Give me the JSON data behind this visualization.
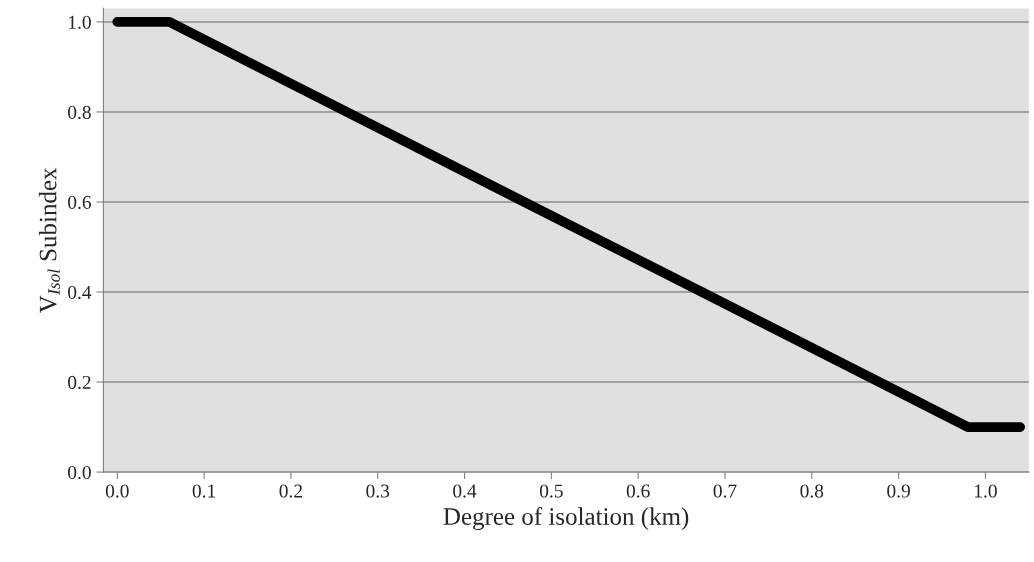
{
  "chart_data": {
    "type": "line",
    "xlabel": "Degree of isolation (km)",
    "ylabel": "V$_{Isol}$ Subindex",
    "x": [
      0.0,
      0.06,
      0.98,
      1.04
    ],
    "series": [
      {
        "color": "#000000",
        "values": [
          1.0,
          1.0,
          0.1,
          0.1
        ]
      }
    ],
    "xlim": [
      -0.016,
      1.05
    ],
    "xticks": [
      {
        "value": 0.0,
        "label": "0.0"
      },
      0.1,
      0.2,
      0.3,
      0.4,
      0.5,
      0.6,
      0.7,
      0.8,
      0.9,
      {
        "value": 1.0,
        "label": "1.0"
      }
    ],
    "ylim": [
      0,
      1.03
    ],
    "yticks": [
      {
        "value": 0.0,
        "label": "0.0"
      },
      0.2,
      0.4,
      0.6,
      0.8,
      {
        "value": 1.0,
        "label": "1.0"
      }
    ],
    "grid": "y",
    "marker": "none",
    "line_style": "solid"
  }
}
